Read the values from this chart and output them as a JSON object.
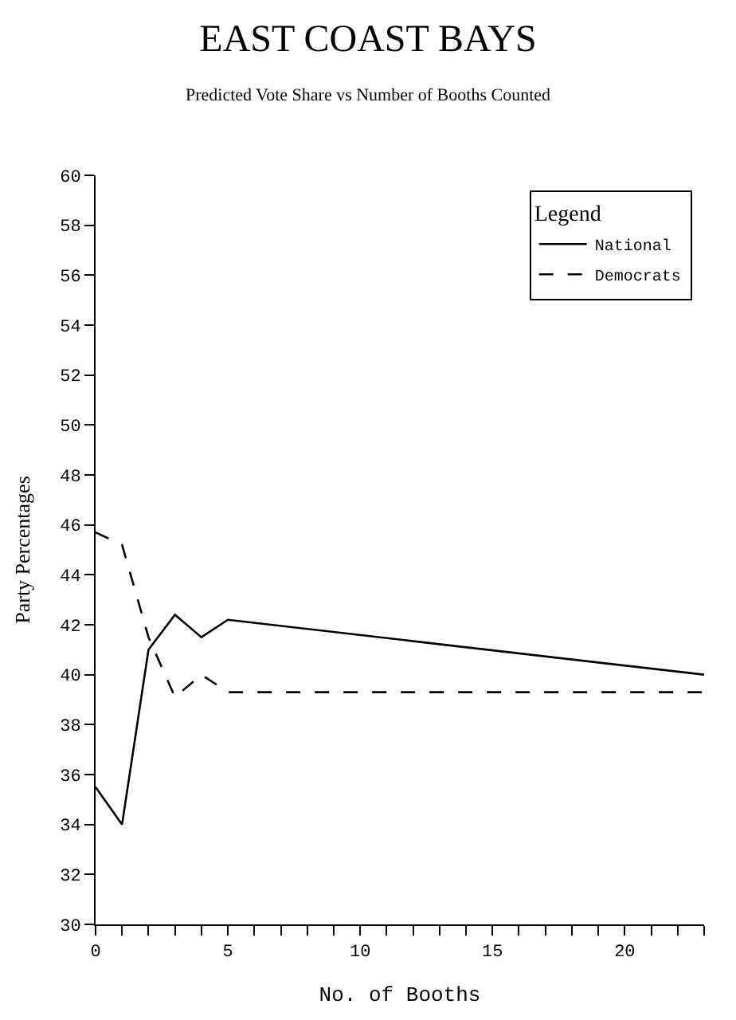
{
  "chart_data": {
    "type": "line",
    "title": "EAST COAST BAYS",
    "subtitle": "Predicted Vote Share vs Number of Booths Counted",
    "xlabel": "No. of Booths",
    "ylabel": "Party Percentages",
    "legend_title": "Legend",
    "x": [
      0,
      1,
      2,
      3,
      4,
      5,
      23
    ],
    "series": [
      {
        "name": "National",
        "color": "#000000",
        "line_style": "solid",
        "values": [
          35.5,
          34,
          41,
          42.4,
          41.5,
          42.2,
          40
        ]
      },
      {
        "name": "Democrats",
        "color": "#000000",
        "line_style": "dashed",
        "values": [
          45.7,
          45.2,
          41.5,
          39.1,
          40,
          39.3,
          39.3
        ]
      }
    ],
    "xlim": [
      0,
      23
    ],
    "ylim": [
      30,
      60
    ],
    "xticks": [
      0,
      {
        "value": 1,
        "label": null
      },
      {
        "value": 2,
        "label": null
      },
      {
        "value": 3,
        "label": null
      },
      {
        "value": 4,
        "label": null
      },
      5,
      {
        "value": 6,
        "label": null
      },
      {
        "value": 7,
        "label": null
      },
      {
        "value": 8,
        "label": null
      },
      {
        "value": 9,
        "label": null
      },
      10,
      {
        "value": 11,
        "label": null
      },
      {
        "value": 12,
        "label": null
      },
      {
        "value": 13,
        "label": null
      },
      {
        "value": 14,
        "label": null
      },
      15,
      {
        "value": 16,
        "label": null
      },
      {
        "value": 17,
        "label": null
      },
      {
        "value": 18,
        "label": null
      },
      {
        "value": 19,
        "label": null
      },
      20,
      {
        "value": 21,
        "label": null
      },
      {
        "value": 22,
        "label": null
      },
      {
        "value": 23,
        "label": null
      }
    ],
    "yticks": [
      30,
      32,
      34,
      36,
      38,
      40,
      42,
      44,
      46,
      48,
      50,
      52,
      54,
      56,
      58,
      60
    ],
    "grid": false,
    "legend": "top right",
    "marker": "none"
  }
}
